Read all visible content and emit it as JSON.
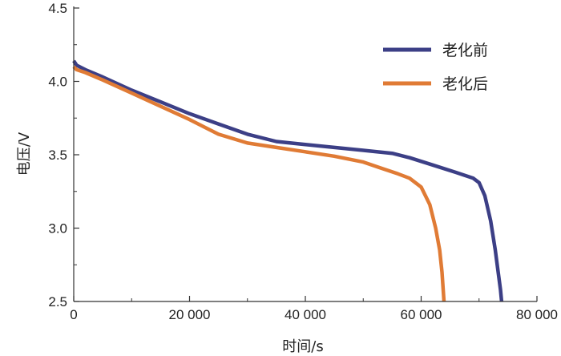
{
  "chart_data": {
    "type": "line",
    "title": "",
    "xlabel": "时间/s",
    "ylabel": "电压/V",
    "xlim": [
      0,
      80000
    ],
    "ylim": [
      2.5,
      4.5
    ],
    "x_ticks": [
      0,
      20000,
      40000,
      60000,
      80000
    ],
    "x_tick_labels": [
      "0",
      "20 000",
      "40 000",
      "60 000",
      "80 000"
    ],
    "y_ticks": [
      2.5,
      3.0,
      3.5,
      4.0,
      4.5
    ],
    "y_tick_labels": [
      "2.5",
      "3.0",
      "3.5",
      "4.0",
      "4.5"
    ],
    "grid": false,
    "legend_position": "top-right",
    "series": [
      {
        "name": "老化前",
        "color": "#3c3f86",
        "x": [
          0,
          500,
          2000,
          5000,
          10000,
          15000,
          20000,
          25000,
          30000,
          35000,
          40000,
          45000,
          50000,
          55000,
          58000,
          62000,
          66000,
          69000,
          70000,
          71000,
          72000,
          72800,
          73300,
          73700,
          73900
        ],
        "y": [
          4.14,
          4.11,
          4.08,
          4.03,
          3.94,
          3.86,
          3.78,
          3.71,
          3.64,
          3.59,
          3.57,
          3.55,
          3.53,
          3.51,
          3.48,
          3.43,
          3.38,
          3.34,
          3.31,
          3.22,
          3.05,
          2.85,
          2.7,
          2.58,
          2.5
        ]
      },
      {
        "name": "老化后",
        "color": "#e07b35",
        "x": [
          0,
          500,
          2000,
          5000,
          10000,
          15000,
          20000,
          25000,
          30000,
          35000,
          40000,
          45000,
          50000,
          53000,
          56000,
          58000,
          60000,
          61500,
          62500,
          63200,
          63600,
          63800,
          63950
        ],
        "y": [
          4.1,
          4.08,
          4.06,
          4.01,
          3.92,
          3.83,
          3.74,
          3.64,
          3.58,
          3.55,
          3.52,
          3.49,
          3.45,
          3.41,
          3.37,
          3.34,
          3.28,
          3.16,
          3.0,
          2.85,
          2.7,
          2.58,
          2.5
        ]
      }
    ]
  }
}
